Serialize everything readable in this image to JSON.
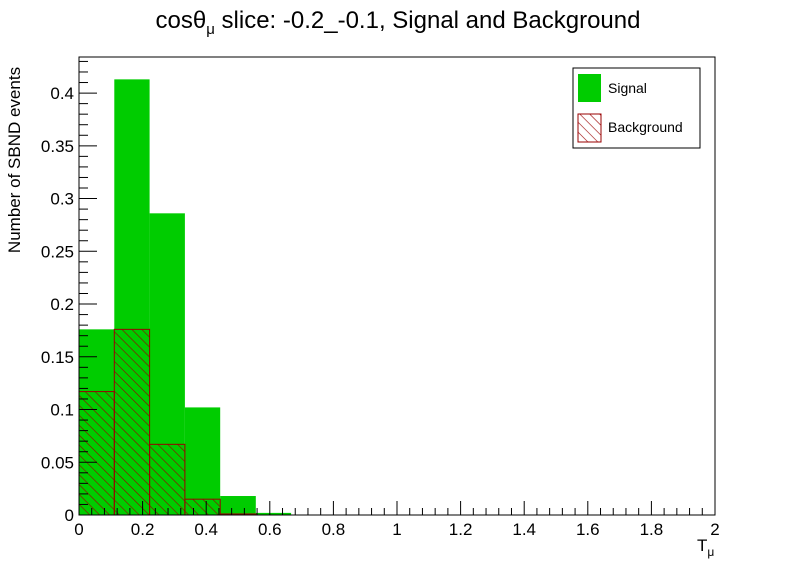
{
  "chart_data": {
    "type": "bar",
    "title": {
      "main": "cosθ",
      "sub": "μ",
      "rest": " slice: -0.2_-0.1, Signal and Background"
    },
    "xlabel": {
      "main": "T",
      "sub": "μ"
    },
    "ylabel": "Number of SBND events",
    "xlim": [
      0,
      2
    ],
    "ylim": [
      0,
      0.4342
    ],
    "x_ticks": [
      0,
      0.2,
      0.4,
      0.6,
      0.8,
      1,
      1.2,
      1.4,
      1.6,
      1.8,
      2
    ],
    "x_tick_labels": [
      "0",
      "0.2",
      "0.4",
      "0.6",
      "0.8",
      "1",
      "1.2",
      "1.4",
      "1.6",
      "1.8",
      "2"
    ],
    "y_ticks": [
      0,
      0.05,
      0.1,
      0.15,
      0.2,
      0.25,
      0.3,
      0.35,
      0.4
    ],
    "y_tick_labels": [
      "0",
      "0.05",
      "0.1",
      "0.15",
      "0.2",
      "0.25",
      "0.3",
      "0.35",
      "0.4"
    ],
    "bin_edges": [
      0,
      0.111,
      0.222,
      0.333,
      0.444,
      0.556,
      0.667,
      0.778,
      0.889,
      1.0,
      1.111,
      1.222,
      1.333,
      1.444,
      1.556,
      1.667,
      1.778,
      1.889,
      2.0
    ],
    "legend_position": "top-right",
    "series": [
      {
        "name": "Signal",
        "color": "#00cc00",
        "style": "solid",
        "values": [
          0.176,
          0.413,
          0.286,
          0.102,
          0.018,
          0.002,
          0,
          0,
          0,
          0,
          0,
          0,
          0,
          0,
          0,
          0,
          0,
          0
        ]
      },
      {
        "name": "Background",
        "color": "#990000",
        "style": "hatched",
        "values": [
          0.117,
          0.176,
          0.067,
          0.015,
          0.001,
          0,
          0,
          0,
          0,
          0,
          0,
          0,
          0,
          0,
          0,
          0,
          0,
          0
        ]
      }
    ]
  }
}
